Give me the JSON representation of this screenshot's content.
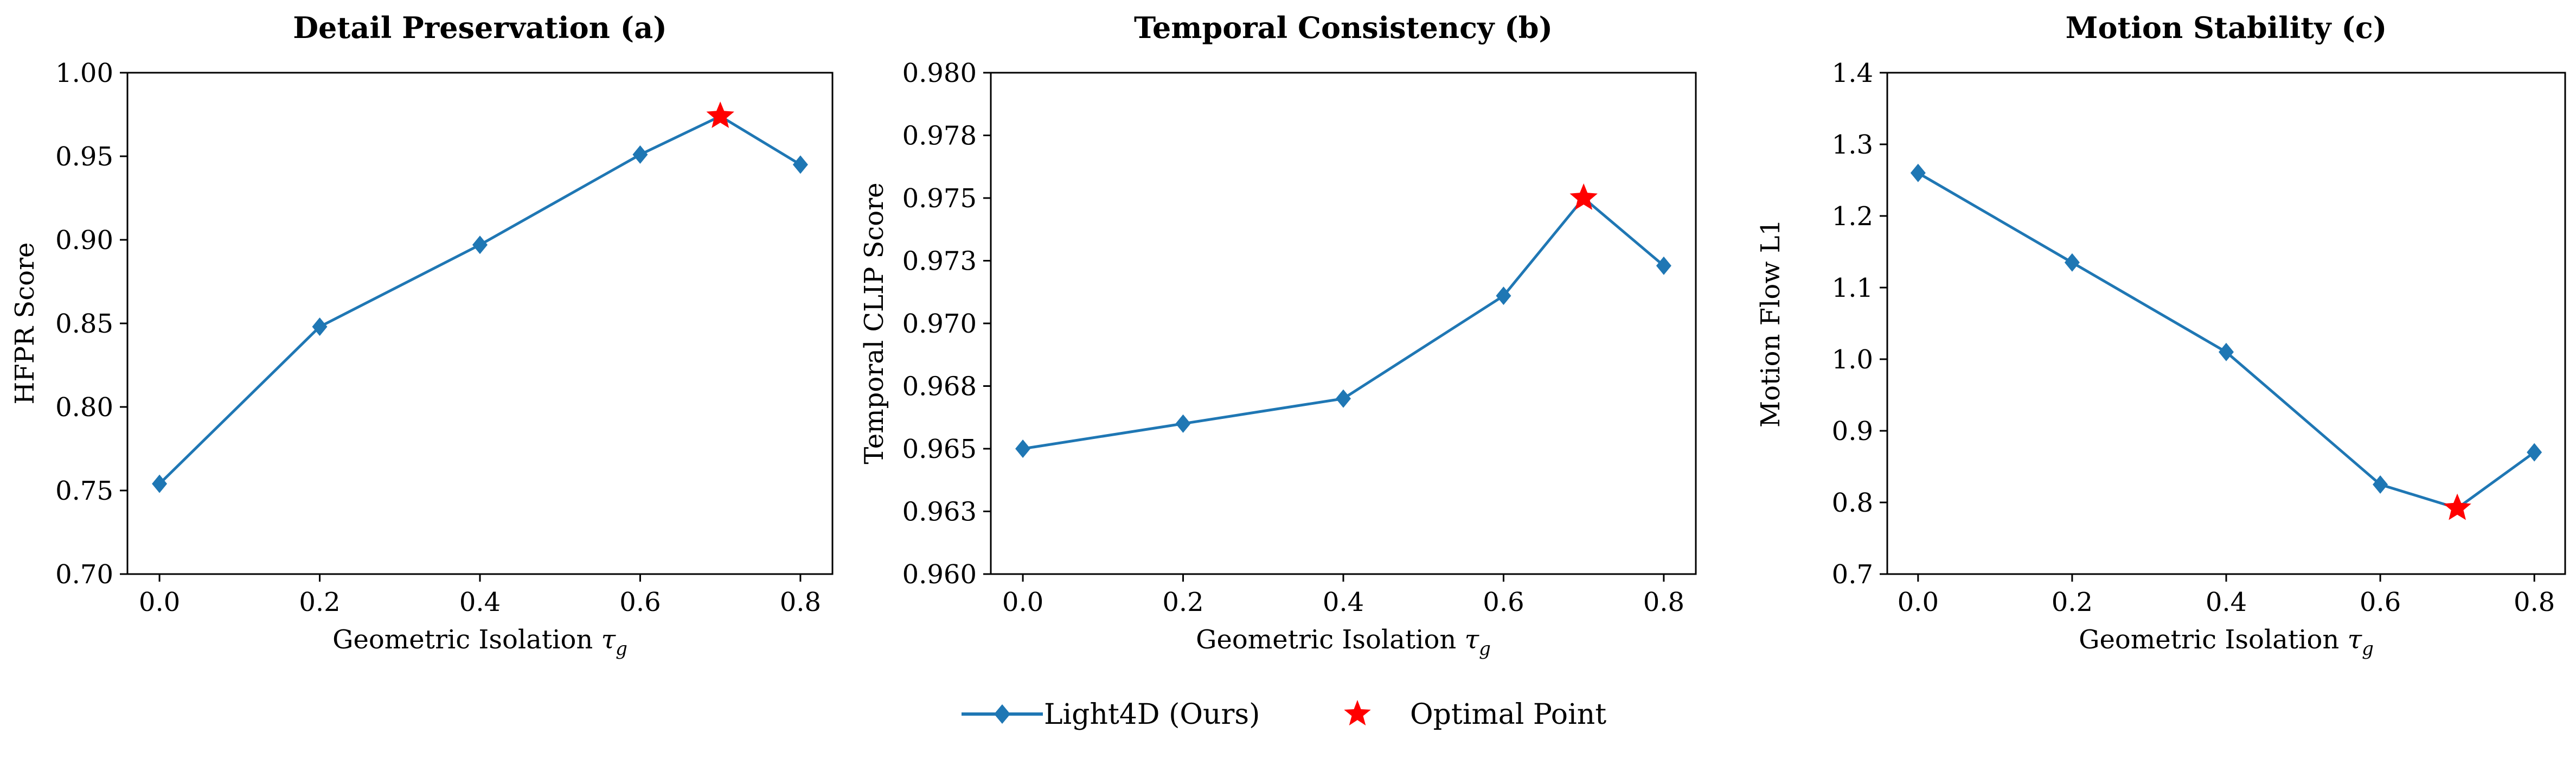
{
  "chart_data": [
    {
      "type": "line",
      "title": "Detail Preservation (a)",
      "xlabel": "Geometric Isolation",
      "xlabel_symbol": "τ",
      "xlabel_subscript": "g",
      "ylabel": "HFPR Score",
      "xlim": [
        -0.04,
        0.84
      ],
      "ylim": [
        0.7,
        1.0
      ],
      "xticks": [
        0.0,
        0.2,
        0.4,
        0.6,
        0.8
      ],
      "xtick_labels": [
        "0.0",
        "0.2",
        "0.4",
        "0.6",
        "0.8"
      ],
      "yticks": [
        0.7,
        0.75,
        0.8,
        0.85,
        0.9,
        0.95,
        1.0
      ],
      "ytick_labels": [
        "0.70",
        "0.75",
        "0.80",
        "0.85",
        "0.90",
        "0.95",
        "1.00"
      ],
      "series": [
        {
          "name": "Light4D (Ours)",
          "x": [
            0.0,
            0.2,
            0.4,
            0.6,
            0.7,
            0.8
          ],
          "y": [
            0.754,
            0.848,
            0.897,
            0.951,
            0.974,
            0.945
          ]
        }
      ],
      "optimal": {
        "x": 0.7,
        "y": 0.974
      }
    },
    {
      "type": "line",
      "title": "Temporal Consistency (b)",
      "xlabel": "Geometric Isolation",
      "xlabel_symbol": "τ",
      "xlabel_subscript": "g",
      "ylabel": "Temporal CLIP Score",
      "xlim": [
        -0.04,
        0.84
      ],
      "ylim": [
        0.96,
        0.98
      ],
      "xticks": [
        0.0,
        0.2,
        0.4,
        0.6,
        0.8
      ],
      "xtick_labels": [
        "0.0",
        "0.2",
        "0.4",
        "0.6",
        "0.8"
      ],
      "yticks": [
        0.96,
        0.9625,
        0.965,
        0.9675,
        0.97,
        0.9725,
        0.975,
        0.9775,
        0.98
      ],
      "ytick_labels": [
        "0.960",
        "0.963",
        "0.965",
        "0.968",
        "0.970",
        "0.973",
        "0.975",
        "0.978",
        "0.980"
      ],
      "series": [
        {
          "name": "Light4D (Ours)",
          "x": [
            0.0,
            0.2,
            0.4,
            0.6,
            0.7,
            0.8
          ],
          "y": [
            0.965,
            0.966,
            0.967,
            0.9711,
            0.975,
            0.9723
          ]
        }
      ],
      "optimal": {
        "x": 0.7,
        "y": 0.975
      }
    },
    {
      "type": "line",
      "title": "Motion Stability (c)",
      "xlabel": "Geometric Isolation",
      "xlabel_symbol": "τ",
      "xlabel_subscript": "g",
      "ylabel": "Motion Flow L1",
      "xlim": [
        -0.04,
        0.84
      ],
      "ylim": [
        0.7,
        1.4
      ],
      "xticks": [
        0.0,
        0.2,
        0.4,
        0.6,
        0.8
      ],
      "xtick_labels": [
        "0.0",
        "0.2",
        "0.4",
        "0.6",
        "0.8"
      ],
      "yticks": [
        0.7,
        0.8,
        0.9,
        1.0,
        1.1,
        1.2,
        1.3,
        1.4
      ],
      "ytick_labels": [
        "0.7",
        "0.8",
        "0.9",
        "1.0",
        "1.1",
        "1.2",
        "1.3",
        "1.4"
      ],
      "series": [
        {
          "name": "Light4D (Ours)",
          "x": [
            0.0,
            0.2,
            0.4,
            0.6,
            0.7,
            0.8
          ],
          "y": [
            1.26,
            1.135,
            1.01,
            0.825,
            0.792,
            0.87
          ]
        }
      ],
      "optimal": {
        "x": 0.7,
        "y": 0.792
      }
    }
  ],
  "legend": {
    "items": [
      {
        "label": "Light4D (Ours)",
        "marker": "diamond-line"
      },
      {
        "label": "Optimal Point",
        "marker": "star"
      }
    ],
    "placement": "bottom-center"
  },
  "colors": {
    "series": "#1f77b4",
    "optimal": "#ff0000",
    "axis": "#000000"
  }
}
